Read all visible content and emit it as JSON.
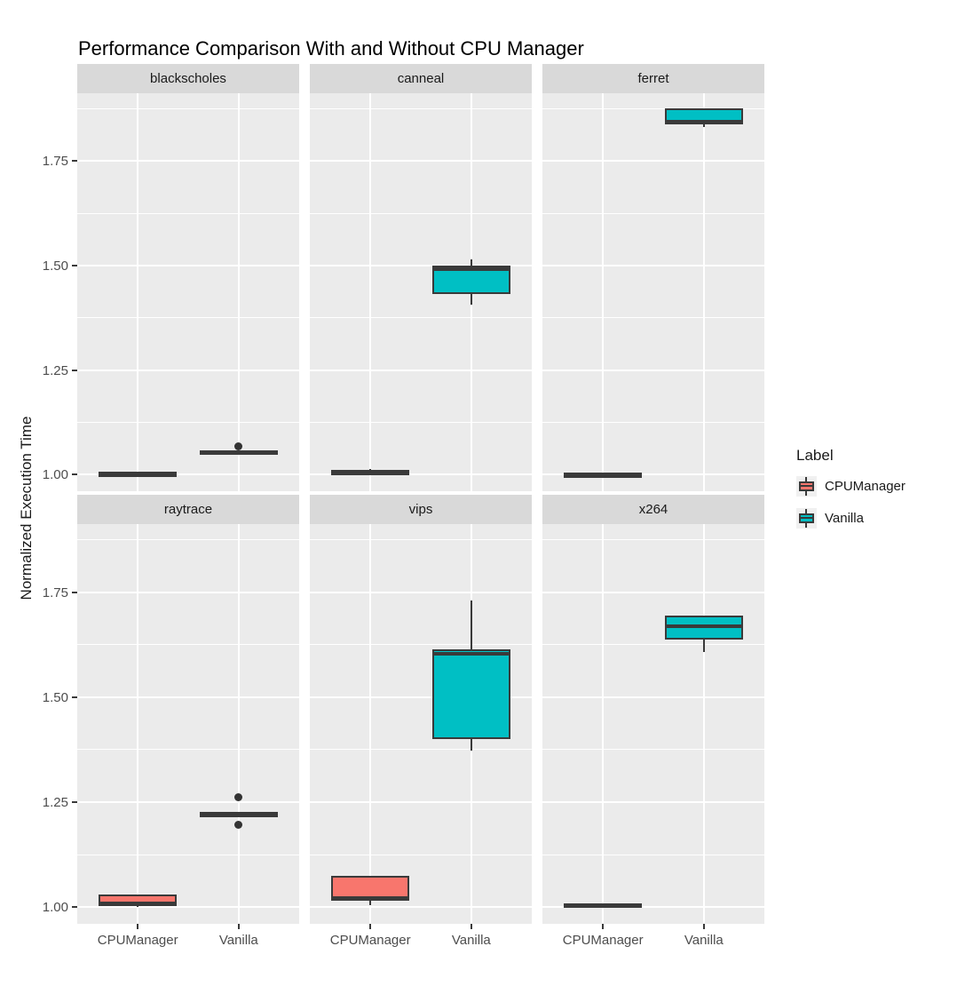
{
  "legend": {
    "title": "Label",
    "entries": [
      {
        "label": "CPUManager",
        "color": "#F8766D"
      },
      {
        "label": "Vanilla",
        "color": "#00BFC4"
      }
    ]
  },
  "colors": {
    "box_stroke": "#3A3A3A",
    "panel_bg": "#EBEBEB",
    "strip_bg": "#D9D9D9",
    "grid": "#FFFFFF",
    "tick_text": "#4D4D4D",
    "text": "#1A1A1A",
    "outlier": "#333333",
    "legend_key_bg": "#F0F0F0"
  },
  "chart_data": {
    "type": "boxplot",
    "title": "Performance Comparison With and Without CPU Manager",
    "ylabel": "Normalized Execution Time",
    "xlabel": "",
    "grid": true,
    "legend_position": "right",
    "facet_rows": 2,
    "facet_cols": 3,
    "x_categories": [
      "CPUManager",
      "Vanilla"
    ],
    "y_tick_labels": [
      "1.00",
      "1.25",
      "1.50",
      "1.75"
    ],
    "y_tick_values": [
      1.0,
      1.25,
      1.5,
      1.75
    ],
    "y_minor_values": [
      1.125,
      1.375,
      1.625,
      1.875
    ],
    "y_domain": [
      0.96,
      1.912
    ],
    "series_colors": {
      "CPUManager": "#F8766D",
      "Vanilla": "#00BFC4"
    },
    "facets": [
      {
        "name": "blackscholes",
        "boxes": [
          {
            "group": "CPUManager",
            "min": 0.999,
            "q1": 1.0,
            "median": 1.002,
            "q3": 1.005,
            "max": 1.006,
            "outliers": []
          },
          {
            "group": "Vanilla",
            "min": 1.048,
            "q1": 1.05,
            "median": 1.053,
            "q3": 1.057,
            "max": 1.058,
            "outliers": [
              1.068
            ]
          }
        ]
      },
      {
        "name": "canneal",
        "boxes": [
          {
            "group": "CPUManager",
            "min": 0.998,
            "q1": 1.0,
            "median": 1.002,
            "q3": 1.012,
            "max": 1.013,
            "outliers": []
          },
          {
            "group": "Vanilla",
            "min": 1.407,
            "q1": 1.431,
            "median": 1.491,
            "q3": 1.499,
            "max": 1.514,
            "outliers": []
          }
        ]
      },
      {
        "name": "ferret",
        "boxes": [
          {
            "group": "CPUManager",
            "min": 0.999,
            "q1": 1.0,
            "median": 1.001,
            "q3": 1.003,
            "max": 1.004,
            "outliers": []
          },
          {
            "group": "Vanilla",
            "min": 1.831,
            "q1": 1.838,
            "median": 1.844,
            "q3": 1.876,
            "max": 1.876,
            "outliers": []
          }
        ]
      },
      {
        "name": "raytrace",
        "boxes": [
          {
            "group": "CPUManager",
            "min": 1.0,
            "q1": 1.002,
            "median": 1.008,
            "q3": 1.03,
            "max": 1.03,
            "outliers": []
          },
          {
            "group": "Vanilla",
            "min": 1.219,
            "q1": 1.22,
            "median": 1.222,
            "q3": 1.224,
            "max": 1.225,
            "outliers": [
              1.261,
              1.196
            ]
          }
        ]
      },
      {
        "name": "vips",
        "boxes": [
          {
            "group": "CPUManager",
            "min": 1.005,
            "q1": 1.015,
            "median": 1.021,
            "q3": 1.075,
            "max": 1.075,
            "outliers": []
          },
          {
            "group": "Vanilla",
            "min": 1.373,
            "q1": 1.4,
            "median": 1.603,
            "q3": 1.613,
            "max": 1.73,
            "outliers": []
          }
        ]
      },
      {
        "name": "x264",
        "boxes": [
          {
            "group": "CPUManager",
            "min": 1.0,
            "q1": 1.001,
            "median": 1.004,
            "q3": 1.008,
            "max": 1.008,
            "outliers": []
          },
          {
            "group": "Vanilla",
            "min": 1.608,
            "q1": 1.638,
            "median": 1.668,
            "q3": 1.695,
            "max": 1.695,
            "outliers": []
          }
        ]
      }
    ]
  }
}
